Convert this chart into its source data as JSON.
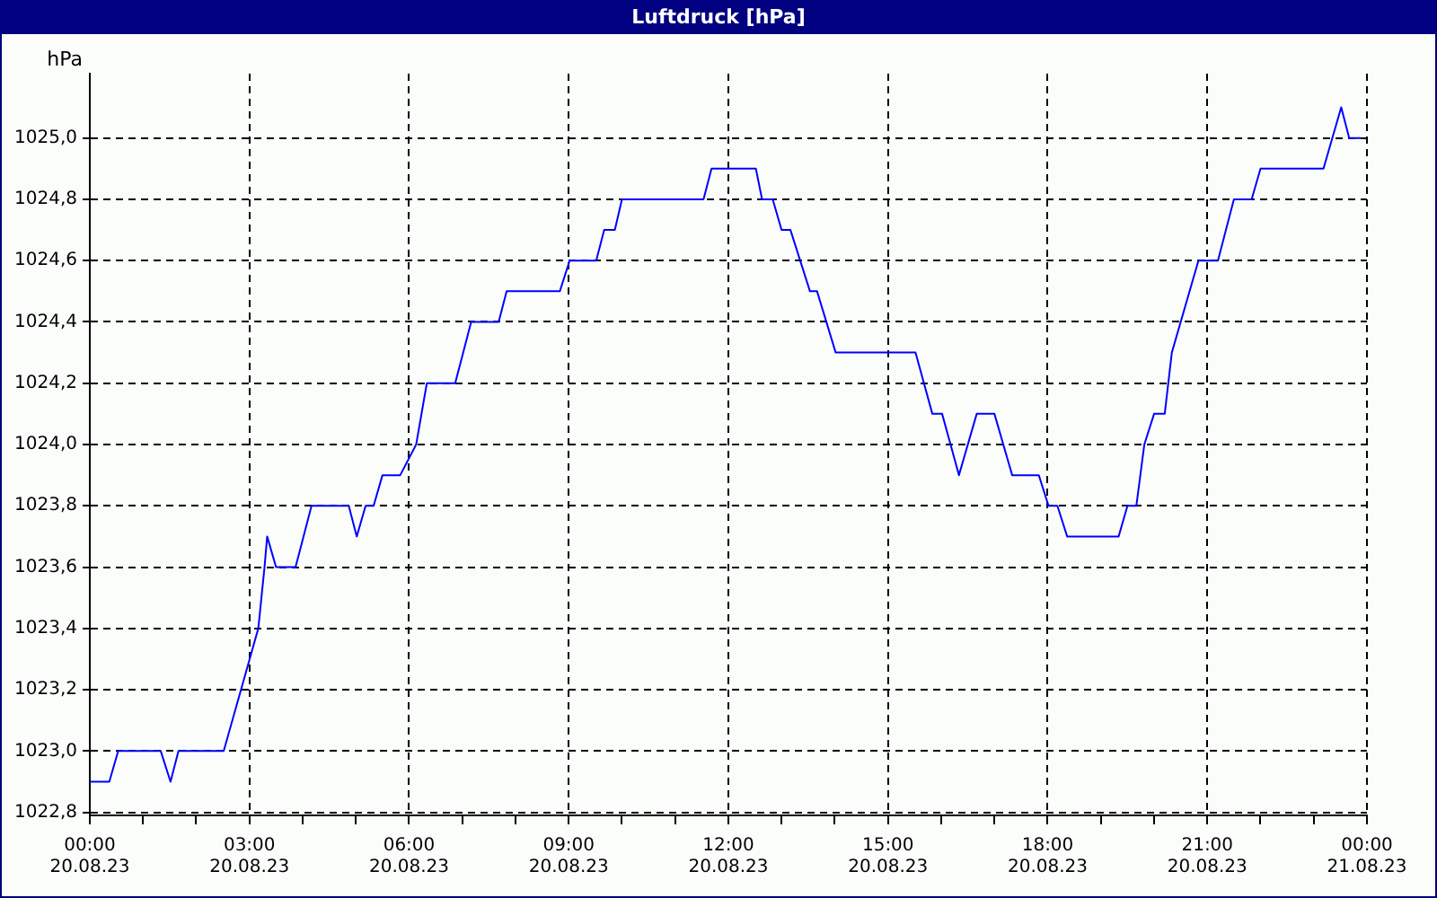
{
  "chart_data": {
    "type": "line",
    "title": "Luftdruck [hPa]",
    "ylabel": "hPa",
    "x": [
      "--08-20T00:00",
      "--08-20T00:22",
      "--08-20T00:32",
      "--08-20T01:20",
      "--08-20T01:31",
      "--08-20T01:40",
      "--08-20T02:31",
      "--08-20T03:10",
      "--08-20T03:17",
      "--08-20T03:20",
      "--08-20T03:30",
      "--08-20T03:52",
      "--08-20T04:10",
      "--08-20T04:52",
      "--08-20T05:01",
      "--08-20T05:11",
      "--08-20T05:20",
      "--08-20T05:30",
      "--08-20T05:50",
      "--08-20T06:08",
      "--08-20T06:20",
      "--08-20T06:52",
      "--08-20T07:10",
      "--08-20T07:41",
      "--08-20T07:50",
      "--08-20T08:50",
      "--08-20T09:01",
      "--08-20T09:31",
      "--08-20T09:40",
      "--08-20T09:52",
      "--08-20T10:00",
      "--08-20T11:32",
      "--08-20T11:41",
      "--08-20T12:31",
      "--08-20T12:38",
      "--08-20T12:50",
      "--08-20T13:00",
      "--08-20T13:10",
      "--08-20T13:32",
      "--08-20T13:40",
      "--08-20T14:01",
      "--08-20T15:31",
      "--08-20T15:50",
      "--08-20T16:01",
      "--08-20T16:20",
      "--08-20T16:40",
      "--08-20T17:00",
      "--08-20T17:20",
      "--08-20T17:50",
      "--08-20T18:01",
      "--08-20T18:11",
      "--08-20T18:22",
      "--08-20T19:20",
      "--08-20T19:30",
      "--08-20T19:40",
      "--08-20T19:49",
      "--08-20T20:00",
      "--08-20T20:12",
      "--08-20T20:20",
      "--08-20T20:50",
      "--08-20T21:12",
      "--08-20T21:30",
      "--08-20T21:50",
      "--08-20T22:00",
      "--08-20T23:11",
      "--08-20T23:31",
      "--08-20T23:40",
      "--08-20T23:53"
    ],
    "series": [
      {
        "color": "#0000ff",
        "values": [
          1022.9,
          1022.9,
          1023.0,
          1023.0,
          1022.9,
          1023.0,
          1023.0,
          1023.4,
          1023.6,
          1023.7,
          1023.6,
          1023.6,
          1023.8,
          1023.8,
          1023.7,
          1023.8,
          1023.8,
          1023.9,
          1023.9,
          1024.0,
          1024.2,
          1024.2,
          1024.4,
          1024.4,
          1024.5,
          1024.5,
          1024.6,
          1024.6,
          1024.7,
          1024.7,
          1024.8,
          1024.8,
          1024.9,
          1024.9,
          1024.8,
          1024.8,
          1024.7,
          1024.7,
          1024.5,
          1024.5,
          1024.3,
          1024.3,
          1024.1,
          1024.1,
          1023.9,
          1024.1,
          1024.1,
          1023.9,
          1023.9,
          1023.8,
          1023.8,
          1023.7,
          1023.7,
          1023.8,
          1023.8,
          1024.0,
          1024.1,
          1024.1,
          1024.3,
          1024.6,
          1024.6,
          1024.8,
          1024.8,
          1024.9,
          1024.9,
          1025.1,
          1025.0,
          1025.0
        ]
      }
    ],
    "xlim": [
      "--08-20T00:00",
      "--08-21T00:00"
    ],
    "ylim": [
      1022.79,
      1025.21
    ],
    "xticks": [
      {
        "value": "--08-20T00:00",
        "label": "00:00\n20.08.23"
      },
      {
        "value": "--08-20T01:00",
        "label": null
      },
      {
        "value": "--08-20T02:00",
        "label": null
      },
      {
        "value": "--08-20T03:00",
        "label": "03:00\n20.08.23"
      },
      {
        "value": "--08-20T04:00",
        "label": null
      },
      {
        "value": "--08-20T05:00",
        "label": null
      },
      {
        "value": "--08-20T06:00",
        "label": "06:00\n20.08.23"
      },
      {
        "value": "--08-20T07:00",
        "label": null
      },
      {
        "value": "--08-20T08:00",
        "label": null
      },
      {
        "value": "--08-20T09:00",
        "label": "09:00\n20.08.23"
      },
      {
        "value": "--08-20T10:00",
        "label": null
      },
      {
        "value": "--08-20T11:00",
        "label": null
      },
      {
        "value": "--08-20T12:00",
        "label": "12:00\n20.08.23"
      },
      {
        "value": "--08-20T13:00",
        "label": null
      },
      {
        "value": "--08-20T14:00",
        "label": null
      },
      {
        "value": "--08-20T15:00",
        "label": "15:00\n20.08.23"
      },
      {
        "value": "--08-20T16:00",
        "label": null
      },
      {
        "value": "--08-20T17:00",
        "label": null
      },
      {
        "value": "--08-20T18:00",
        "label": "18:00\n20.08.23"
      },
      {
        "value": "--08-20T19:00",
        "label": null
      },
      {
        "value": "--08-20T20:00",
        "label": null
      },
      {
        "value": "--08-20T21:00",
        "label": "21:00\n20.08.23"
      },
      {
        "value": "--08-20T22:00",
        "label": null
      },
      {
        "value": "--08-20T23:00",
        "label": null
      },
      {
        "value": "--08-21T00:00",
        "label": "00:00\n21.08.23"
      }
    ],
    "yticks": [
      {
        "value": 1022.8,
        "label": "1022,8"
      },
      {
        "value": 1023.0,
        "label": "1023,0"
      },
      {
        "value": 1023.2,
        "label": "1023,2"
      },
      {
        "value": 1023.4,
        "label": "1023,4"
      },
      {
        "value": 1023.6,
        "label": "1023,6"
      },
      {
        "value": 1023.8,
        "label": "1023,8"
      },
      {
        "value": 1024.0,
        "label": "1024,0"
      },
      {
        "value": 1024.2,
        "label": "1024,2"
      },
      {
        "value": 1024.4,
        "label": "1024,4"
      },
      {
        "value": 1024.6,
        "label": "1024,6"
      },
      {
        "value": 1024.8,
        "label": "1024,8"
      },
      {
        "value": 1025.0,
        "label": "1025,0"
      }
    ],
    "grid": true,
    "legend": false,
    "marker": "none",
    "line_style": "solid"
  }
}
